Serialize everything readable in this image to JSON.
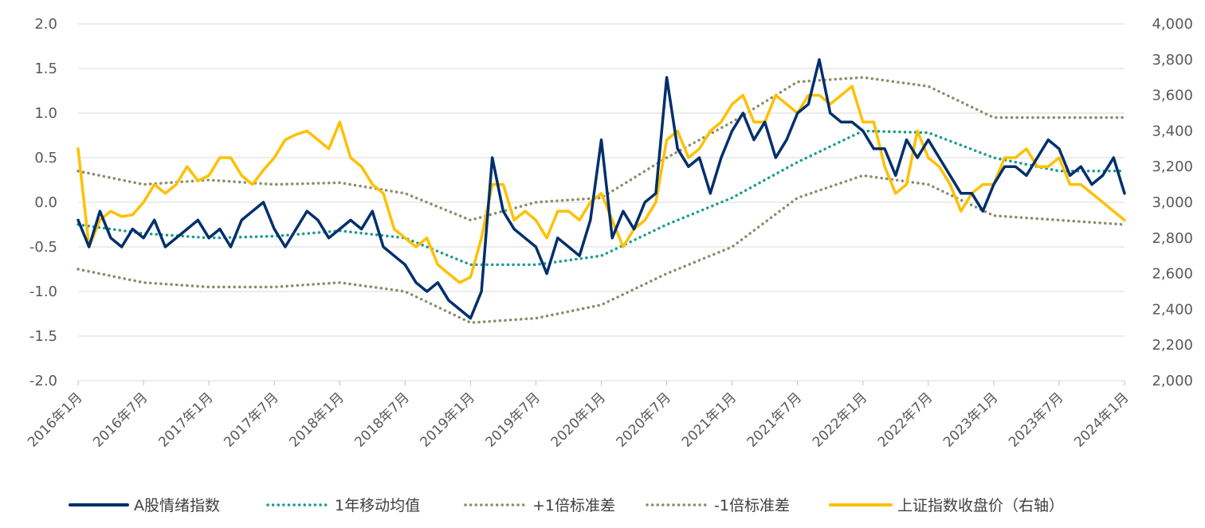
{
  "chart_data": {
    "type": "line",
    "title": "",
    "y_left": {
      "ticks": [
        "2.0",
        "1.5",
        "1.0",
        "0.5",
        "0.0",
        "-0.5",
        "-1.0",
        "-1.5",
        "-2.0"
      ],
      "min": -2.0,
      "max": 2.0
    },
    "y_right": {
      "ticks": [
        "4,000",
        "3,800",
        "3,600",
        "3,400",
        "3,200",
        "3,000",
        "2,800",
        "2,600",
        "2,400",
        "2,200",
        "2,000"
      ],
      "min": 2000,
      "max": 4000
    },
    "x_ticks": [
      "2016年1月",
      "2016年7月",
      "2017年1月",
      "2017年7月",
      "2018年1月",
      "2018年7月",
      "2019年1月",
      "2019年7月",
      "2020年1月",
      "2020年7月",
      "2021年1月",
      "2021年7月",
      "2022年1月",
      "2022年7月",
      "2023年1月",
      "2023年7月",
      "2024年1月"
    ],
    "grid": true,
    "legend_position": "bottom",
    "series": [
      {
        "name": "A股情绪指数",
        "axis": "left",
        "color": "#002F6C",
        "style": "solid",
        "x": [
          "2016-01",
          "2016-02",
          "2016-03",
          "2016-04",
          "2016-05",
          "2016-06",
          "2016-07",
          "2016-08",
          "2016-09",
          "2016-10",
          "2016-11",
          "2016-12",
          "2017-01",
          "2017-02",
          "2017-03",
          "2017-04",
          "2017-05",
          "2017-06",
          "2017-07",
          "2017-08",
          "2017-09",
          "2017-10",
          "2017-11",
          "2017-12",
          "2018-01",
          "2018-02",
          "2018-03",
          "2018-04",
          "2018-05",
          "2018-06",
          "2018-07",
          "2018-08",
          "2018-09",
          "2018-10",
          "2018-11",
          "2018-12",
          "2019-01",
          "2019-02",
          "2019-03",
          "2019-04",
          "2019-05",
          "2019-06",
          "2019-07",
          "2019-08",
          "2019-09",
          "2019-10",
          "2019-11",
          "2019-12",
          "2020-01",
          "2020-02",
          "2020-03",
          "2020-04",
          "2020-05",
          "2020-06",
          "2020-07",
          "2020-08",
          "2020-09",
          "2020-10",
          "2020-11",
          "2020-12",
          "2021-01",
          "2021-02",
          "2021-03",
          "2021-04",
          "2021-05",
          "2021-06",
          "2021-07",
          "2021-08",
          "2021-09",
          "2021-10",
          "2021-11",
          "2021-12",
          "2022-01",
          "2022-02",
          "2022-03",
          "2022-04",
          "2022-05",
          "2022-06",
          "2022-07",
          "2022-08",
          "2022-09",
          "2022-10",
          "2022-11",
          "2022-12",
          "2023-01",
          "2023-02",
          "2023-03",
          "2023-04",
          "2023-05",
          "2023-06",
          "2023-07",
          "2023-08",
          "2023-09",
          "2023-10",
          "2023-11",
          "2023-12",
          "2024-01"
        ],
        "values": [
          -0.2,
          -0.5,
          -0.1,
          -0.4,
          -0.5,
          -0.3,
          -0.4,
          -0.2,
          -0.5,
          -0.4,
          -0.3,
          -0.2,
          -0.4,
          -0.3,
          -0.5,
          -0.2,
          -0.1,
          0.0,
          -0.3,
          -0.5,
          -0.3,
          -0.1,
          -0.2,
          -0.4,
          -0.3,
          -0.2,
          -0.3,
          -0.1,
          -0.5,
          -0.6,
          -0.7,
          -0.9,
          -1.0,
          -0.9,
          -1.1,
          -1.2,
          -1.3,
          -1.0,
          0.5,
          -0.1,
          -0.3,
          -0.4,
          -0.5,
          -0.8,
          -0.4,
          -0.5,
          -0.6,
          -0.2,
          0.7,
          -0.4,
          -0.1,
          -0.3,
          0.0,
          0.1,
          1.4,
          0.6,
          0.4,
          0.5,
          0.1,
          0.5,
          0.8,
          1.0,
          0.7,
          0.9,
          0.5,
          0.7,
          1.0,
          1.1,
          1.6,
          1.0,
          0.9,
          0.9,
          0.8,
          0.6,
          0.6,
          0.3,
          0.7,
          0.5,
          0.7,
          0.5,
          0.3,
          0.1,
          0.1,
          -0.1,
          0.2,
          0.4,
          0.4,
          0.3,
          0.5,
          0.7,
          0.6,
          0.3,
          0.4,
          0.2,
          0.3,
          0.5,
          0.1
        ]
      },
      {
        "name": "1年移动均值",
        "axis": "left",
        "color": "#1A9C8E",
        "style": "dotted",
        "x": [
          "2016-01",
          "2016-07",
          "2017-01",
          "2017-07",
          "2018-01",
          "2018-07",
          "2019-01",
          "2019-07",
          "2020-01",
          "2020-07",
          "2021-01",
          "2021-07",
          "2022-01",
          "2022-07",
          "2023-01",
          "2023-07",
          "2024-01"
        ],
        "values": [
          -0.25,
          -0.35,
          -0.4,
          -0.38,
          -0.32,
          -0.4,
          -0.7,
          -0.7,
          -0.6,
          -0.25,
          0.05,
          0.45,
          0.8,
          0.78,
          0.5,
          0.35,
          0.35
        ]
      },
      {
        "name": "+1倍标准差",
        "axis": "left",
        "color": "#8C8C6A",
        "style": "dotted",
        "x": [
          "2016-01",
          "2016-07",
          "2017-01",
          "2017-07",
          "2018-01",
          "2018-07",
          "2019-01",
          "2019-07",
          "2020-01",
          "2020-07",
          "2021-01",
          "2021-07",
          "2022-01",
          "2022-07",
          "2023-01",
          "2023-07",
          "2024-01"
        ],
        "values": [
          0.35,
          0.2,
          0.25,
          0.2,
          0.22,
          0.1,
          -0.2,
          0.0,
          0.05,
          0.5,
          0.9,
          1.35,
          1.4,
          1.3,
          0.95,
          0.95,
          0.95
        ]
      },
      {
        "name": "-1倍标准差",
        "axis": "left",
        "color": "#8C8C6A",
        "style": "dotted",
        "x": [
          "2016-01",
          "2016-07",
          "2017-01",
          "2017-07",
          "2018-01",
          "2018-07",
          "2019-01",
          "2019-07",
          "2020-01",
          "2020-07",
          "2021-01",
          "2021-07",
          "2022-01",
          "2022-07",
          "2023-01",
          "2023-07",
          "2024-01"
        ],
        "values": [
          -0.75,
          -0.9,
          -0.95,
          -0.95,
          -0.9,
          -1.0,
          -1.35,
          -1.3,
          -1.15,
          -0.8,
          -0.5,
          0.05,
          0.3,
          0.2,
          -0.15,
          -0.2,
          -0.25
        ]
      },
      {
        "name": "上证指数收盘价（右轴）",
        "axis": "right",
        "color": "#FFC000",
        "style": "solid",
        "x": [
          "2016-01",
          "2016-02",
          "2016-03",
          "2016-04",
          "2016-05",
          "2016-06",
          "2016-07",
          "2016-08",
          "2016-09",
          "2016-10",
          "2016-11",
          "2016-12",
          "2017-01",
          "2017-02",
          "2017-03",
          "2017-04",
          "2017-05",
          "2017-06",
          "2017-07",
          "2017-08",
          "2017-09",
          "2017-10",
          "2017-11",
          "2017-12",
          "2018-01",
          "2018-02",
          "2018-03",
          "2018-04",
          "2018-05",
          "2018-06",
          "2018-07",
          "2018-08",
          "2018-09",
          "2018-10",
          "2018-11",
          "2018-12",
          "2019-01",
          "2019-02",
          "2019-03",
          "2019-04",
          "2019-05",
          "2019-06",
          "2019-07",
          "2019-08",
          "2019-09",
          "2019-10",
          "2019-11",
          "2019-12",
          "2020-01",
          "2020-02",
          "2020-03",
          "2020-04",
          "2020-05",
          "2020-06",
          "2020-07",
          "2020-08",
          "2020-09",
          "2020-10",
          "2020-11",
          "2020-12",
          "2021-01",
          "2021-02",
          "2021-03",
          "2021-04",
          "2021-05",
          "2021-06",
          "2021-07",
          "2021-08",
          "2021-09",
          "2021-10",
          "2021-11",
          "2021-12",
          "2022-01",
          "2022-02",
          "2022-03",
          "2022-04",
          "2022-05",
          "2022-06",
          "2022-07",
          "2022-08",
          "2022-09",
          "2022-10",
          "2022-11",
          "2022-12",
          "2023-01",
          "2023-02",
          "2023-03",
          "2023-04",
          "2023-05",
          "2023-06",
          "2023-07",
          "2023-08",
          "2023-09",
          "2023-10",
          "2023-11",
          "2023-12",
          "2024-01"
        ],
        "values": [
          3300,
          2750,
          2900,
          2950,
          2920,
          2930,
          3000,
          3100,
          3050,
          3100,
          3200,
          3120,
          3150,
          3250,
          3250,
          3150,
          3100,
          3180,
          3250,
          3350,
          3380,
          3400,
          3350,
          3300,
          3450,
          3250,
          3200,
          3100,
          3050,
          2850,
          2800,
          2750,
          2800,
          2650,
          2600,
          2550,
          2580,
          2800,
          3100,
          3100,
          2900,
          2950,
          2900,
          2800,
          2950,
          2950,
          2900,
          3000,
          3050,
          2900,
          2750,
          2850,
          2900,
          3000,
          3350,
          3400,
          3250,
          3300,
          3400,
          3450,
          3550,
          3600,
          3450,
          3450,
          3600,
          3550,
          3500,
          3600,
          3600,
          3550,
          3600,
          3650,
          3450,
          3450,
          3200,
          3050,
          3100,
          3400,
          3250,
          3200,
          3100,
          2950,
          3050,
          3100,
          3100,
          3250,
          3250,
          3300,
          3200,
          3200,
          3250,
          3100,
          3100,
          3050,
          3000,
          2950,
          2900
        ]
      }
    ]
  },
  "legend": [
    {
      "label": "A股情绪指数",
      "color": "#002F6C",
      "style": "solid"
    },
    {
      "label": "1年移动均值",
      "color": "#1A9C8E",
      "style": "dotted"
    },
    {
      "label": "+1倍标准差",
      "color": "#8C8C6A",
      "style": "dotted"
    },
    {
      "label": "-1倍标准差",
      "color": "#8C8C6A",
      "style": "dotted"
    },
    {
      "label": "上证指数收盘价（右轴）",
      "color": "#FFC000",
      "style": "solid"
    }
  ]
}
